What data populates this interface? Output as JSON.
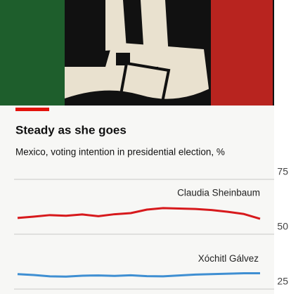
{
  "chart_data": {
    "type": "line",
    "title": "Steady as she goes",
    "subtitle": "Mexico, voting intention in presidential election, %",
    "categories": [
      null,
      null,
      null,
      null,
      null,
      null,
      null,
      null,
      null,
      null,
      null,
      null,
      null,
      null,
      null,
      null
    ],
    "series": [
      {
        "name": "Claudia Sheinbaum",
        "color": "#d7191c",
        "values": [
          54.2,
          54.8,
          55.5,
          55.2,
          55.8,
          55.0,
          55.9,
          56.4,
          58.0,
          58.7,
          58.5,
          58.3,
          57.8,
          57.0,
          56.0,
          53.8
        ]
      },
      {
        "name": "Xóchitl Gálvez",
        "color": "#3f8fd2",
        "values": [
          28.6,
          28.2,
          27.6,
          27.5,
          27.9,
          28.0,
          27.8,
          28.1,
          27.7,
          27.6,
          28.0,
          28.4,
          28.6,
          28.8,
          29.0,
          29.0
        ]
      }
    ],
    "ylim": [
      20,
      78
    ],
    "yticks": [
      25,
      50,
      75
    ],
    "grid": true
  }
}
